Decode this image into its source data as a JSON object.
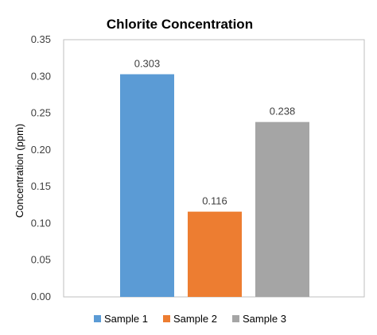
{
  "chart_data": {
    "type": "bar",
    "title": "Chlorite Concentration",
    "ylabel": "Concentration (ppm)",
    "xlabel": "",
    "ylim": [
      0,
      0.35
    ],
    "yticks": [
      "0.00",
      "0.05",
      "0.10",
      "0.15",
      "0.20",
      "0.25",
      "0.30",
      "0.35"
    ],
    "grid": false,
    "legend_position": "bottom",
    "series": [
      {
        "name": "Sample 1",
        "value": 0.303,
        "label": "0.303",
        "color": "#5b9bd5"
      },
      {
        "name": "Sample 2",
        "value": 0.116,
        "label": "0.116",
        "color": "#ed7d31"
      },
      {
        "name": "Sample 3",
        "value": 0.238,
        "label": "0.238",
        "color": "#a5a5a5"
      }
    ]
  }
}
